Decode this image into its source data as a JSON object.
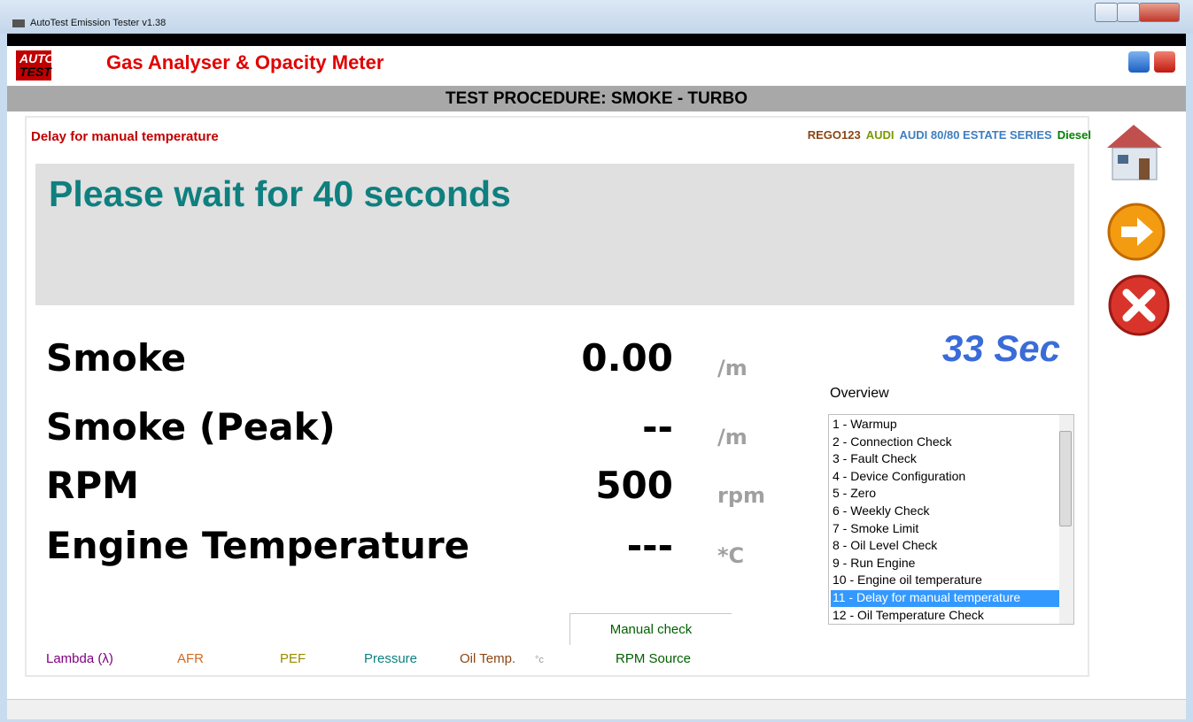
{
  "window": {
    "title": "AutoTest Emission Tester v1.38"
  },
  "header": {
    "logo_top": "AUTO",
    "logo_bottom": "TEST",
    "title": "Gas Analyser & Opacity Meter"
  },
  "banner": "TEST PROCEDURE: SMOKE - TURBO",
  "status": "Delay for manual temperature",
  "vehicle": {
    "rego": "REGO123",
    "make": "AUDI",
    "model": "AUDI 80/80 ESTATE SERIES",
    "fuel": "Diesel"
  },
  "message": "Please wait for 40 seconds",
  "timer": "33 Sec",
  "readings": [
    {
      "label": "Smoke",
      "value": "0.00",
      "unit": "/m"
    },
    {
      "label": "Smoke (Peak)",
      "value": "--",
      "unit": "/m"
    },
    {
      "label": "RPM",
      "value": "500",
      "unit": "rpm"
    },
    {
      "label": "Engine Temperature",
      "value": "---",
      "unit": "*C"
    }
  ],
  "overview": {
    "title": "Overview",
    "items": [
      "1 - Warmup",
      "2 - Connection Check",
      "3 - Fault Check",
      "4 - Device Configuration",
      "5 - Zero",
      "6 - Weekly Check",
      "7 - Smoke Limit",
      "8 - Oil Level Check",
      "9 - Run Engine",
      "10 - Engine oil temperature",
      "11 - Delay for manual temperature",
      "12 - Oil Temperature Check"
    ],
    "selected": 10
  },
  "tab": "Manual check",
  "footer": {
    "lambda": "Lambda (λ)",
    "afr": "AFR",
    "pef": "PEF",
    "pressure": "Pressure",
    "oil_temp": "Oil Temp.",
    "oil_unit": "°c",
    "rpm_source": "RPM Source"
  }
}
